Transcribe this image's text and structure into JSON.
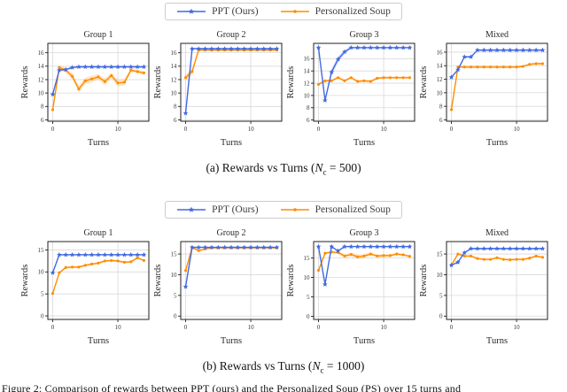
{
  "legend": {
    "items": [
      {
        "label": "PPT (Ours)",
        "color": "#4169e1",
        "marker": "star"
      },
      {
        "label": "Personalized Soup",
        "color": "#ff8c00",
        "marker": "dot"
      }
    ]
  },
  "captions": {
    "a": {
      "pre": "(a) Rewards vs Turns (",
      "var": "N",
      "sub": "c",
      "post": " = 500)"
    },
    "b": {
      "pre": "(b) Rewards vs Turns (",
      "var": "N",
      "sub": "c",
      "post": " = 1000)"
    }
  },
  "figure_caption": "Figure 2: Comparison of rewards between PPT (ours) and the Personalized Soup (PS) over 15 turns and",
  "colors": {
    "ppt": "#4169e1",
    "soup": "#ff8c00",
    "grid": "#d9d9d9",
    "spine": "#222222"
  },
  "chart_data": [
    {
      "panel": "a",
      "type": "line",
      "title": "Group 1",
      "xlabel": "Turns",
      "ylabel": "Rewards",
      "x": [
        0,
        1,
        2,
        3,
        4,
        5,
        6,
        7,
        8,
        9,
        10,
        11,
        12,
        13,
        14
      ],
      "xticks": [
        0,
        10
      ],
      "yticks": [
        6,
        8,
        10,
        12,
        14,
        16
      ],
      "xlim": [
        -0.75,
        14.75
      ],
      "ylim": [
        5.8,
        17.4
      ],
      "grid": true,
      "series": [
        {
          "name": "PPT (Ours)",
          "color": "#4169e1",
          "marker": "star",
          "values": [
            9.8,
            13.4,
            13.5,
            13.8,
            13.9,
            13.9,
            13.9,
            13.9,
            13.9,
            13.9,
            13.9,
            13.9,
            13.9,
            13.9,
            13.9
          ],
          "band": 0.15
        },
        {
          "name": "Personalized Soup",
          "color": "#ff8c00",
          "marker": "dot",
          "values": [
            7.5,
            13.8,
            13.4,
            12.5,
            10.6,
            11.8,
            12.1,
            12.4,
            11.7,
            12.6,
            11.5,
            11.6,
            13.4,
            13.2,
            13.0
          ],
          "band": [
            0.2,
            0.3,
            0.4,
            0.5,
            0.5,
            0.5,
            0.5,
            0.4,
            0.5,
            0.4,
            0.5,
            0.5,
            0.3,
            0.3,
            0.3
          ]
        }
      ]
    },
    {
      "panel": "a",
      "type": "line",
      "title": "Group 2",
      "xlabel": "Turns",
      "ylabel": "Rewards",
      "x": [
        0,
        1,
        2,
        3,
        4,
        5,
        6,
        7,
        8,
        9,
        10,
        11,
        12,
        13,
        14
      ],
      "xticks": [
        0,
        10
      ],
      "yticks": [
        6,
        8,
        10,
        12,
        14,
        16
      ],
      "xlim": [
        -0.75,
        14.75
      ],
      "ylim": [
        5.8,
        17.4
      ],
      "grid": true,
      "series": [
        {
          "name": "PPT (Ours)",
          "color": "#4169e1",
          "marker": "star",
          "values": [
            7.0,
            16.6,
            16.6,
            16.6,
            16.6,
            16.6,
            16.6,
            16.6,
            16.6,
            16.6,
            16.6,
            16.6,
            16.6,
            16.6,
            16.6
          ],
          "band": 0.1
        },
        {
          "name": "Personalized Soup",
          "color": "#ff8c00",
          "marker": "dot",
          "values": [
            12.3,
            13.2,
            16.4,
            16.4,
            16.4,
            16.4,
            16.4,
            16.4,
            16.4,
            16.4,
            16.4,
            16.4,
            16.4,
            16.4,
            16.4
          ],
          "band": [
            0.4,
            0.5,
            0.15,
            0.15,
            0.15,
            0.15,
            0.15,
            0.15,
            0.15,
            0.15,
            0.15,
            0.15,
            0.15,
            0.15,
            0.15
          ]
        }
      ]
    },
    {
      "panel": "a",
      "type": "line",
      "title": "Group 3",
      "xlabel": "Turns",
      "ylabel": "Rewards",
      "x": [
        0,
        1,
        2,
        3,
        4,
        5,
        6,
        7,
        8,
        9,
        10,
        11,
        12,
        13,
        14
      ],
      "xticks": [
        0,
        10
      ],
      "yticks": [
        6,
        8,
        10,
        12,
        14,
        16
      ],
      "xlim": [
        -0.75,
        14.75
      ],
      "ylim": [
        5.8,
        18.5
      ],
      "grid": true,
      "series": [
        {
          "name": "PPT (Ours)",
          "color": "#4169e1",
          "marker": "star",
          "values": [
            17.8,
            9.2,
            13.8,
            15.9,
            17.1,
            17.8,
            17.8,
            17.8,
            17.8,
            17.8,
            17.8,
            17.8,
            17.8,
            17.8,
            17.8
          ],
          "band": [
            0.1,
            0.3,
            0.6,
            0.5,
            0.4,
            0.1,
            0.1,
            0.1,
            0.1,
            0.1,
            0.1,
            0.1,
            0.1,
            0.1,
            0.1
          ]
        },
        {
          "name": "Personalized Soup",
          "color": "#ff8c00",
          "marker": "dot",
          "values": [
            11.8,
            12.4,
            12.4,
            12.9,
            12.4,
            12.9,
            12.3,
            12.4,
            12.3,
            12.8,
            12.9,
            12.9,
            12.9,
            12.9,
            12.9
          ],
          "band": 0.2
        }
      ]
    },
    {
      "panel": "a",
      "type": "line",
      "title": "Mixed",
      "xlabel": "Turns",
      "ylabel": "Rewards",
      "x": [
        0,
        1,
        2,
        3,
        4,
        5,
        6,
        7,
        8,
        9,
        10,
        11,
        12,
        13,
        14
      ],
      "xticks": [
        0,
        10
      ],
      "yticks": [
        6,
        8,
        10,
        12,
        14,
        16
      ],
      "xlim": [
        -0.75,
        14.75
      ],
      "ylim": [
        5.8,
        17.3
      ],
      "grid": true,
      "series": [
        {
          "name": "PPT (Ours)",
          "color": "#4169e1",
          "marker": "star",
          "values": [
            12.3,
            13.4,
            15.3,
            15.3,
            16.3,
            16.3,
            16.3,
            16.3,
            16.3,
            16.3,
            16.3,
            16.3,
            16.3,
            16.3,
            16.3
          ],
          "band": 0.15
        },
        {
          "name": "Personalized Soup",
          "color": "#ff8c00",
          "marker": "dot",
          "values": [
            7.5,
            13.8,
            13.8,
            13.8,
            13.8,
            13.8,
            13.8,
            13.8,
            13.8,
            13.8,
            13.8,
            13.9,
            14.2,
            14.3,
            14.3
          ],
          "band": 0.15
        }
      ]
    },
    {
      "panel": "b",
      "type": "line",
      "title": "Group 1",
      "xlabel": "Turns",
      "ylabel": "Rewards",
      "x": [
        0,
        1,
        2,
        3,
        4,
        5,
        6,
        7,
        8,
        9,
        10,
        11,
        12,
        13,
        14
      ],
      "xticks": [
        0,
        10
      ],
      "yticks": [
        0,
        5,
        10,
        15
      ],
      "xlim": [
        -0.75,
        14.75
      ],
      "ylim": [
        -0.8,
        16.9
      ],
      "grid": true,
      "series": [
        {
          "name": "PPT (Ours)",
          "color": "#4169e1",
          "marker": "star",
          "values": [
            9.8,
            13.9,
            13.9,
            13.9,
            13.9,
            13.9,
            13.9,
            13.9,
            13.9,
            13.9,
            13.9,
            13.9,
            13.9,
            13.9,
            13.9
          ],
          "band": 0.1
        },
        {
          "name": "Personalized Soup",
          "color": "#ff8c00",
          "marker": "dot",
          "values": [
            5.1,
            9.8,
            11.0,
            11.1,
            11.1,
            11.5,
            11.8,
            12.0,
            12.5,
            12.6,
            12.5,
            12.2,
            12.3,
            13.2,
            12.6
          ],
          "band": 0.25
        }
      ]
    },
    {
      "panel": "b",
      "type": "line",
      "title": "Group 2",
      "xlabel": "Turns",
      "ylabel": "Rewards",
      "x": [
        0,
        1,
        2,
        3,
        4,
        5,
        6,
        7,
        8,
        9,
        10,
        11,
        12,
        13,
        14
      ],
      "xticks": [
        0,
        10
      ],
      "yticks": [
        0,
        5,
        10,
        15
      ],
      "xlim": [
        -0.75,
        14.75
      ],
      "ylim": [
        -0.8,
        18.0
      ],
      "grid": true,
      "series": [
        {
          "name": "PPT (Ours)",
          "color": "#4169e1",
          "marker": "star",
          "values": [
            7.1,
            16.6,
            16.6,
            16.6,
            16.6,
            16.6,
            16.6,
            16.6,
            16.6,
            16.6,
            16.6,
            16.6,
            16.6,
            16.6,
            16.6
          ],
          "band": 0.1
        },
        {
          "name": "Personalized Soup",
          "color": "#ff8c00",
          "marker": "dot",
          "values": [
            11.0,
            16.6,
            15.8,
            16.2,
            16.5,
            16.5,
            16.5,
            16.5,
            16.5,
            16.5,
            16.5,
            16.5,
            16.5,
            16.5,
            16.5
          ],
          "band": 0.2
        }
      ]
    },
    {
      "panel": "b",
      "type": "line",
      "title": "Group 3",
      "xlabel": "Turns",
      "ylabel": "Rewards",
      "x": [
        0,
        1,
        2,
        3,
        4,
        5,
        6,
        7,
        8,
        9,
        10,
        11,
        12,
        13,
        14
      ],
      "xticks": [
        0,
        10
      ],
      "yticks": [
        0,
        5,
        10,
        15
      ],
      "xlim": [
        -0.75,
        14.75
      ],
      "ylim": [
        -0.8,
        19.2
      ],
      "grid": true,
      "series": [
        {
          "name": "PPT (Ours)",
          "color": "#4169e1",
          "marker": "star",
          "values": [
            17.9,
            8.2,
            17.9,
            16.8,
            17.9,
            17.9,
            17.9,
            17.9,
            17.9,
            17.9,
            17.9,
            17.9,
            17.9,
            17.9,
            17.9
          ],
          "band": 0.15
        },
        {
          "name": "Personalized Soup",
          "color": "#ff8c00",
          "marker": "dot",
          "values": [
            11.8,
            16.2,
            16.5,
            16.4,
            15.5,
            15.9,
            15.3,
            15.5,
            16.0,
            15.5,
            15.6,
            15.6,
            16.0,
            15.8,
            15.4
          ],
          "band": [
            0.3,
            0.3,
            0.3,
            0.4,
            0.5,
            0.5,
            0.6,
            0.5,
            0.4,
            0.4,
            0.4,
            0.4,
            0.3,
            0.3,
            0.3
          ]
        }
      ]
    },
    {
      "panel": "b",
      "type": "line",
      "title": "Mixed",
      "xlabel": "Turns",
      "ylabel": "Rewards",
      "x": [
        0,
        1,
        2,
        3,
        4,
        5,
        6,
        7,
        8,
        9,
        10,
        11,
        12,
        13,
        14
      ],
      "xticks": [
        0,
        10
      ],
      "yticks": [
        0,
        5,
        10,
        15
      ],
      "xlim": [
        -0.75,
        14.75
      ],
      "ylim": [
        -0.8,
        18.0
      ],
      "grid": true,
      "series": [
        {
          "name": "PPT (Ours)",
          "color": "#4169e1",
          "marker": "star",
          "values": [
            12.3,
            13.0,
            15.3,
            16.3,
            16.3,
            16.3,
            16.3,
            16.3,
            16.3,
            16.3,
            16.3,
            16.3,
            16.3,
            16.3,
            16.3
          ],
          "band": 0.15
        },
        {
          "name": "Personalized Soup",
          "color": "#ff8c00",
          "marker": "dot",
          "values": [
            12.3,
            15.0,
            14.5,
            14.5,
            13.9,
            13.7,
            13.7,
            14.1,
            13.7,
            13.6,
            13.7,
            13.7,
            14.0,
            14.5,
            14.2
          ],
          "band": 0.25
        }
      ]
    }
  ]
}
